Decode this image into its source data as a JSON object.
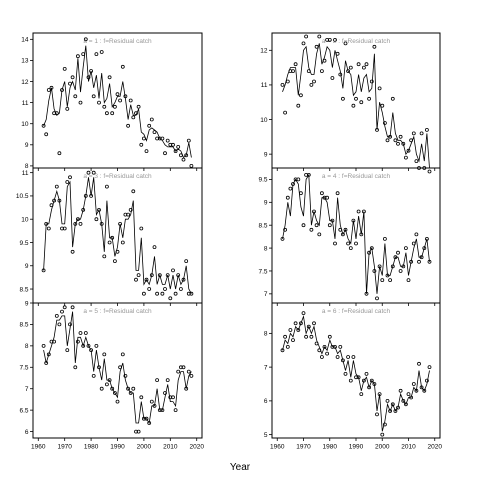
{
  "figure": {
    "xlabel": "Year"
  },
  "chart_data": [
    {
      "type": "line",
      "title": "a = 1 : f=Residual catch",
      "xlim": [
        1958,
        2022
      ],
      "ylim": [
        7.9,
        14.3
      ],
      "xticks": [
        1960,
        1970,
        1980,
        1990,
        2000,
        2010,
        2020
      ],
      "yticks": [
        8,
        9,
        10,
        11,
        12,
        13,
        14
      ],
      "x": [
        1962,
        1963,
        1964,
        1965,
        1966,
        1967,
        1968,
        1969,
        1970,
        1971,
        1972,
        1973,
        1974,
        1975,
        1976,
        1977,
        1978,
        1979,
        1980,
        1981,
        1982,
        1983,
        1984,
        1985,
        1986,
        1987,
        1988,
        1989,
        1990,
        1991,
        1992,
        1993,
        1994,
        1995,
        1996,
        1997,
        1998,
        1999,
        2000,
        2001,
        2002,
        2003,
        2004,
        2005,
        2006,
        2007,
        2008,
        2009,
        2010,
        2011,
        2012,
        2013,
        2014,
        2015,
        2016,
        2017,
        2018
      ],
      "observed": [
        9.9,
        9.5,
        11.6,
        11.7,
        10.5,
        10.5,
        8.6,
        11.6,
        12.6,
        10.7,
        11.9,
        12.2,
        11.3,
        13.2,
        11.0,
        13.3,
        14.0,
        12.2,
        12.5,
        11.3,
        13.3,
        11.0,
        13.4,
        10.8,
        10.5,
        12.2,
        10.5,
        10.8,
        11.4,
        11.1,
        12.7,
        11.3,
        9.9,
        11.1,
        10.3,
        10.5,
        10.8,
        9.0,
        9.3,
        8.7,
        9.9,
        10.2,
        9.6,
        9.3,
        9.3,
        9.3,
        8.6,
        9.2,
        9.0,
        9.0,
        8.7,
        8.9,
        8.5,
        8.3,
        8.5,
        9.2,
        8.0
      ],
      "fitted": [
        9.9,
        10.2,
        11.1,
        11.7,
        10.7,
        10.4,
        10.5,
        11.6,
        12.0,
        10.8,
        11.7,
        12.0,
        11.6,
        13.1,
        11.5,
        12.7,
        13.7,
        12.0,
        12.5,
        11.7,
        12.3,
        11.2,
        12.4,
        11.0,
        11.2,
        11.9,
        10.8,
        11.0,
        11.3,
        11.3,
        12.0,
        11.2,
        10.2,
        10.9,
        10.4,
        10.4,
        10.7,
        9.6,
        9.5,
        9.2,
        9.7,
        9.8,
        9.7,
        9.6,
        9.3,
        9.2,
        9.0,
        8.9,
        8.9,
        8.9,
        8.7,
        8.8,
        8.7,
        8.4,
        8.5,
        9.1,
        8.4
      ]
    },
    {
      "type": "line",
      "title": "a = 2 : f=Residual catch",
      "xlim": [
        1958,
        2022
      ],
      "ylim": [
        8.6,
        12.5
      ],
      "xticks": [
        1960,
        1970,
        1980,
        1990,
        2000,
        2010,
        2020
      ],
      "yticks": [
        9,
        10,
        11,
        12
      ],
      "x": [
        1962,
        1963,
        1964,
        1965,
        1966,
        1967,
        1968,
        1969,
        1970,
        1971,
        1972,
        1973,
        1974,
        1975,
        1976,
        1977,
        1978,
        1979,
        1980,
        1981,
        1982,
        1983,
        1984,
        1985,
        1986,
        1987,
        1988,
        1989,
        1990,
        1991,
        1992,
        1993,
        1994,
        1995,
        1996,
        1997,
        1998,
        1999,
        2000,
        2001,
        2002,
        2003,
        2004,
        2005,
        2006,
        2007,
        2008,
        2009,
        2010,
        2011,
        2012,
        2013,
        2014,
        2015,
        2016,
        2017,
        2018
      ],
      "observed": [
        11.0,
        10.2,
        11.1,
        11.4,
        11.4,
        11.6,
        10.4,
        10.7,
        12.2,
        12.4,
        11.4,
        11.0,
        11.1,
        12.1,
        12.4,
        11.4,
        11.7,
        12.3,
        12.3,
        11.2,
        12.3,
        11.9,
        11.3,
        10.6,
        12.2,
        11.4,
        11.5,
        10.4,
        10.6,
        11.6,
        10.5,
        11.5,
        11.6,
        10.6,
        11.1,
        12.1,
        9.7,
        10.9,
        10.4,
        9.9,
        9.4,
        9.5,
        10.6,
        9.4,
        9.3,
        9.5,
        9.3,
        8.9,
        9.1,
        9.4,
        9.6,
        8.8,
        8.6,
        9.6,
        8.6,
        9.7,
        8.5
      ],
      "fitted": [
        10.8,
        11.0,
        11.3,
        11.5,
        11.5,
        11.5,
        10.7,
        11.3,
        12.0,
        12.1,
        11.5,
        11.3,
        11.3,
        11.9,
        12.2,
        11.6,
        11.8,
        12.1,
        12.0,
        11.5,
        12.0,
        11.7,
        11.4,
        10.9,
        11.7,
        11.4,
        11.3,
        10.7,
        10.8,
        11.3,
        10.8,
        11.2,
        11.3,
        10.8,
        10.9,
        11.9,
        9.7,
        10.5,
        10.2,
        9.8,
        9.5,
        9.5,
        10.2,
        9.6,
        9.4,
        9.4,
        9.3,
        9.0,
        9.1,
        9.3,
        9.5,
        9.0,
        8.8,
        9.3,
        8.8,
        9.6,
        8.6
      ]
    },
    {
      "type": "line",
      "title": "a = 3 : f=Residual catch",
      "xlim": [
        1958,
        2022
      ],
      "ylim": [
        8.2,
        11.1
      ],
      "xticks": [
        1960,
        1970,
        1980,
        1990,
        2000,
        2010,
        2020
      ],
      "yticks": [
        8.5,
        9.0,
        9.5,
        10.0,
        10.5,
        11.0
      ],
      "x": [
        1962,
        1963,
        1964,
        1965,
        1966,
        1967,
        1968,
        1969,
        1970,
        1971,
        1972,
        1973,
        1974,
        1975,
        1976,
        1977,
        1978,
        1979,
        1980,
        1981,
        1982,
        1983,
        1984,
        1985,
        1986,
        1987,
        1988,
        1989,
        1990,
        1991,
        1992,
        1993,
        1994,
        1995,
        1996,
        1997,
        1998,
        1999,
        2000,
        2001,
        2002,
        2003,
        2004,
        2005,
        2006,
        2007,
        2008,
        2009,
        2010,
        2011,
        2012,
        2013,
        2014,
        2015,
        2016,
        2017,
        2018
      ],
      "observed": [
        8.9,
        9.9,
        9.8,
        10.3,
        10.4,
        10.7,
        10.4,
        9.8,
        9.8,
        10.8,
        10.9,
        9.3,
        9.9,
        10.0,
        9.9,
        10.2,
        10.5,
        11.0,
        10.5,
        11.0,
        10.0,
        10.2,
        9.9,
        9.2,
        10.7,
        9.5,
        9.6,
        9.1,
        9.3,
        9.9,
        9.5,
        10.1,
        10.1,
        10.2,
        10.6,
        8.7,
        8.8,
        9.8,
        8.4,
        8.7,
        8.5,
        8.8,
        9.4,
        8.4,
        8.8,
        8.4,
        8.5,
        8.8,
        8.3,
        8.9,
        8.4,
        8.8,
        8.5,
        8.7,
        9.1,
        8.4,
        8.4
      ],
      "fitted": [
        8.9,
        9.9,
        9.9,
        10.2,
        10.4,
        10.6,
        10.4,
        9.9,
        9.9,
        10.7,
        10.8,
        9.4,
        9.9,
        10.0,
        10.0,
        10.2,
        10.5,
        10.9,
        10.5,
        10.9,
        10.1,
        10.2,
        9.9,
        9.3,
        10.4,
        9.6,
        9.6,
        9.2,
        9.4,
        9.9,
        9.6,
        10.0,
        10.0,
        10.1,
        10.4,
        8.9,
        8.9,
        9.6,
        8.6,
        8.7,
        8.6,
        8.8,
        9.2,
        8.6,
        8.8,
        8.6,
        8.6,
        8.8,
        8.5,
        8.8,
        8.5,
        8.8,
        8.6,
        8.7,
        9.0,
        8.5,
        8.4
      ]
    },
    {
      "type": "line",
      "title": "a = 4 : f=Residual catch",
      "xlim": [
        1958,
        2022
      ],
      "ylim": [
        6.8,
        9.75
      ],
      "xticks": [
        1960,
        1970,
        1980,
        1990,
        2000,
        2010,
        2020
      ],
      "yticks": [
        7.0,
        7.5,
        8.0,
        8.5,
        9.0,
        9.5
      ],
      "x": [
        1962,
        1963,
        1964,
        1965,
        1966,
        1967,
        1968,
        1969,
        1970,
        1971,
        1972,
        1973,
        1974,
        1975,
        1976,
        1977,
        1978,
        1979,
        1980,
        1981,
        1982,
        1983,
        1984,
        1985,
        1986,
        1987,
        1988,
        1989,
        1990,
        1991,
        1992,
        1993,
        1994,
        1995,
        1996,
        1997,
        1998,
        1999,
        2000,
        2001,
        2002,
        2003,
        2004,
        2005,
        2006,
        2007,
        2008,
        2009,
        2010,
        2011,
        2012,
        2013,
        2014,
        2015,
        2016,
        2017,
        2018
      ],
      "observed": [
        8.2,
        8.4,
        9.1,
        9.3,
        9.4,
        9.5,
        9.5,
        9.2,
        8.5,
        9.6,
        9.6,
        8.4,
        8.8,
        8.5,
        8.3,
        9.2,
        9.1,
        9.1,
        8.5,
        8.6,
        8.1,
        9.2,
        8.4,
        8.3,
        8.4,
        8.1,
        8.0,
        8.6,
        8.1,
        8.8,
        8.3,
        8.8,
        7.0,
        7.9,
        8.0,
        7.5,
        6.9,
        7.6,
        7.3,
        8.2,
        7.4,
        7.3,
        7.6,
        7.8,
        7.9,
        7.5,
        7.6,
        8.0,
        7.3,
        7.7,
        8.1,
        8.3,
        7.7,
        7.8,
        8.0,
        8.2,
        7.7
      ],
      "fitted": [
        8.2,
        8.5,
        9.0,
        8.7,
        9.4,
        9.5,
        9.4,
        8.9,
        8.7,
        9.5,
        9.6,
        8.5,
        8.8,
        8.6,
        8.5,
        9.1,
        9.1,
        9.0,
        8.6,
        8.6,
        8.2,
        9.1,
        8.5,
        8.3,
        8.4,
        8.2,
        8.1,
        8.6,
        8.2,
        8.7,
        8.3,
        8.8,
        7.0,
        7.9,
        8.0,
        7.6,
        7.0,
        7.6,
        7.4,
        8.1,
        7.4,
        7.4,
        7.6,
        7.8,
        7.8,
        7.6,
        7.6,
        7.9,
        7.4,
        7.7,
        8.0,
        8.2,
        7.8,
        7.8,
        8.0,
        8.2,
        7.7
      ]
    },
    {
      "type": "line",
      "title": "a = 5 : f=Residual catch",
      "xlim": [
        1958,
        2022
      ],
      "ylim": [
        5.85,
        9.0
      ],
      "xticks": [
        1960,
        1970,
        1980,
        1990,
        2000,
        2010,
        2020
      ],
      "yticks": [
        6.0,
        6.5,
        7.0,
        7.5,
        8.0,
        8.5,
        9.0
      ],
      "x": [
        1962,
        1963,
        1964,
        1965,
        1966,
        1967,
        1968,
        1969,
        1970,
        1971,
        1972,
        1973,
        1974,
        1975,
        1976,
        1977,
        1978,
        1979,
        1980,
        1981,
        1982,
        1983,
        1984,
        1985,
        1986,
        1987,
        1988,
        1989,
        1990,
        1991,
        1992,
        1993,
        1994,
        1995,
        1996,
        1997,
        1998,
        1999,
        2000,
        2001,
        2002,
        2003,
        2004,
        2005,
        2006,
        2007,
        2008,
        2009,
        2010,
        2011,
        2012,
        2013,
        2014,
        2015,
        2016,
        2017,
        2018
      ],
      "observed": [
        8.0,
        7.6,
        7.8,
        8.1,
        8.1,
        8.7,
        8.5,
        8.8,
        8.9,
        7.9,
        8.5,
        8.9,
        7.5,
        8.1,
        8.3,
        8.0,
        8.3,
        8.0,
        7.9,
        7.3,
        8.0,
        7.5,
        7.0,
        7.8,
        7.1,
        7.2,
        7.0,
        6.9,
        6.7,
        7.5,
        7.8,
        7.3,
        7.0,
        6.9,
        7.0,
        6.0,
        6.0,
        6.8,
        6.3,
        6.3,
        6.2,
        6.7,
        6.6,
        7.2,
        6.5,
        6.5,
        6.9,
        7.2,
        6.8,
        6.8,
        6.5,
        7.4,
        7.5,
        7.5,
        7.0,
        7.4,
        7.3
      ],
      "fitted": [
        7.9,
        7.6,
        7.8,
        8.0,
        8.2,
        8.6,
        8.6,
        8.7,
        8.7,
        8.0,
        8.4,
        8.8,
        7.6,
        8.2,
        8.2,
        8.0,
        8.2,
        8.0,
        7.9,
        7.4,
        7.9,
        7.5,
        7.2,
        7.7,
        7.2,
        7.2,
        7.0,
        6.9,
        6.8,
        7.4,
        7.6,
        7.2,
        7.0,
        6.9,
        6.9,
        6.2,
        6.2,
        6.7,
        6.3,
        6.3,
        6.2,
        6.6,
        6.6,
        7.0,
        6.5,
        6.5,
        6.8,
        7.1,
        6.7,
        6.7,
        6.6,
        7.2,
        7.4,
        7.4,
        7.0,
        7.3,
        7.4
      ]
    },
    {
      "type": "line",
      "title": "a = 6 : f=Residual catch",
      "xlim": [
        1958,
        2022
      ],
      "ylim": [
        4.9,
        8.9
      ],
      "xticks": [
        1960,
        1970,
        1980,
        1990,
        2000,
        2010,
        2020
      ],
      "yticks": [
        5,
        6,
        7,
        8
      ],
      "x": [
        1962,
        1963,
        1964,
        1965,
        1966,
        1967,
        1968,
        1969,
        1970,
        1971,
        1972,
        1973,
        1974,
        1975,
        1976,
        1977,
        1978,
        1979,
        1980,
        1981,
        1982,
        1983,
        1984,
        1985,
        1986,
        1987,
        1988,
        1989,
        1990,
        1991,
        1992,
        1993,
        1994,
        1995,
        1996,
        1997,
        1998,
        1999,
        2000,
        2001,
        2002,
        2003,
        2004,
        2005,
        2006,
        2007,
        2008,
        2009,
        2010,
        2011,
        2012,
        2013,
        2014,
        2015,
        2016,
        2017,
        2018
      ],
      "observed": [
        7.5,
        7.9,
        7.6,
        8.1,
        7.8,
        8.3,
        8.1,
        8.3,
        8.6,
        7.9,
        8.2,
        7.9,
        8.3,
        7.7,
        7.5,
        7.3,
        7.6,
        7.4,
        7.9,
        7.6,
        7.6,
        7.3,
        7.6,
        7.2,
        6.8,
        7.3,
        6.6,
        7.3,
        6.7,
        6.7,
        6.2,
        6.6,
        6.8,
        6.4,
        6.6,
        6.5,
        5.6,
        6.2,
        5.0,
        5.3,
        6.0,
        5.7,
        5.9,
        5.7,
        5.8,
        6.3,
        6.0,
        5.9,
        6.2,
        6.1,
        6.5,
        6.3,
        7.1,
        6.4,
        6.3,
        6.6,
        7.0
      ],
      "fitted": [
        7.5,
        7.8,
        7.7,
        8.0,
        7.9,
        8.2,
        8.1,
        8.3,
        8.5,
        8.0,
        8.2,
        8.0,
        8.2,
        7.8,
        7.6,
        7.4,
        7.6,
        7.5,
        7.8,
        7.6,
        7.6,
        7.4,
        7.5,
        7.2,
        6.9,
        7.2,
        6.7,
        7.2,
        6.8,
        6.7,
        6.3,
        6.6,
        6.7,
        6.4,
        6.6,
        6.5,
        5.7,
        6.2,
        5.1,
        5.4,
        5.9,
        5.7,
        5.9,
        5.7,
        5.8,
        6.2,
        6.0,
        5.9,
        6.1,
        6.1,
        6.4,
        6.3,
        6.9,
        6.4,
        6.3,
        6.5,
        6.9
      ]
    }
  ]
}
